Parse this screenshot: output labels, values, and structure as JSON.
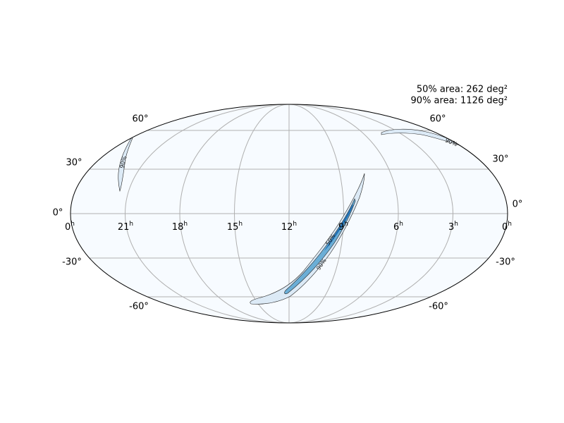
{
  "annotations": [
    "50% area: 262 deg²",
    "90% area: 1126 deg²"
  ],
  "lat_labels_left": [
    "60°",
    "30°",
    "0°",
    "-30°",
    "-60°"
  ],
  "lat_labels_right": [
    "60°",
    "30°",
    "0°",
    "-30°",
    "-60°"
  ],
  "ra_labels": [
    {
      "hour": "0",
      "unit": "h"
    },
    {
      "hour": "21",
      "unit": "h"
    },
    {
      "hour": "18",
      "unit": "h"
    },
    {
      "hour": "15",
      "unit": "h"
    },
    {
      "hour": "12",
      "unit": "h"
    },
    {
      "hour": "9",
      "unit": "h"
    },
    {
      "hour": "6",
      "unit": "h"
    },
    {
      "hour": "3",
      "unit": "h"
    },
    {
      "hour": "0",
      "unit": "h"
    }
  ],
  "contour_labels": [
    "90%",
    "90%",
    "90%",
    "50%"
  ]
}
